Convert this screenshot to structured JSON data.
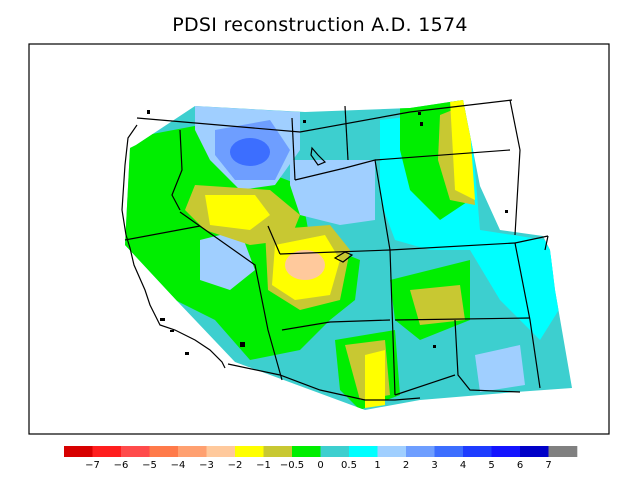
{
  "title": "PDSI reconstruction A.D. 1574",
  "colors": {
    "background": "#ffffff",
    "border": "#000000",
    "boundary": "#000000"
  },
  "legend": {
    "bins": [
      "#d70000",
      "#ff1e1e",
      "#ff4b4b",
      "#ff7a4a",
      "#ffa070",
      "#ffc99c",
      "#ffff00",
      "#c8c832",
      "#00ee00",
      "#3dcfcf",
      "#00ffff",
      "#a0cfff",
      "#6e9eff",
      "#3c6eff",
      "#1e3cff",
      "#1414ff",
      "#0000c8",
      "#808080"
    ],
    "labels": [
      "−7",
      "−6",
      "−5",
      "−4",
      "−3",
      "−2",
      "−1",
      "−0.5",
      "0",
      "0.5",
      "1",
      "2",
      "3",
      "4",
      "5",
      "6",
      "7"
    ]
  },
  "map_regions": [
    {
      "name": "base-field",
      "class": "0 to 0.5",
      "color": "#3dcfcf"
    },
    {
      "name": "west-coast-band",
      "class": "-0.5 to 0",
      "color": "#00ee00"
    },
    {
      "name": "north-low",
      "class": "1 to 2",
      "color": "#a0cfff"
    },
    {
      "name": "north-deep-low",
      "class": "2 to 3",
      "color": "#6e9eff"
    },
    {
      "name": "north-core",
      "class": "3 to 4",
      "color": "#3c6eff"
    },
    {
      "name": "central-dry",
      "class": "-2 to -1",
      "color": "#ffff00"
    },
    {
      "name": "central-dry-core",
      "class": "-3 to -2",
      "color": "#ffc99c"
    },
    {
      "name": "east-dry",
      "class": "-2 to -1",
      "color": "#ffff00"
    },
    {
      "name": "southwest-dry",
      "class": "-2 to -1",
      "color": "#ffff00"
    }
  ]
}
